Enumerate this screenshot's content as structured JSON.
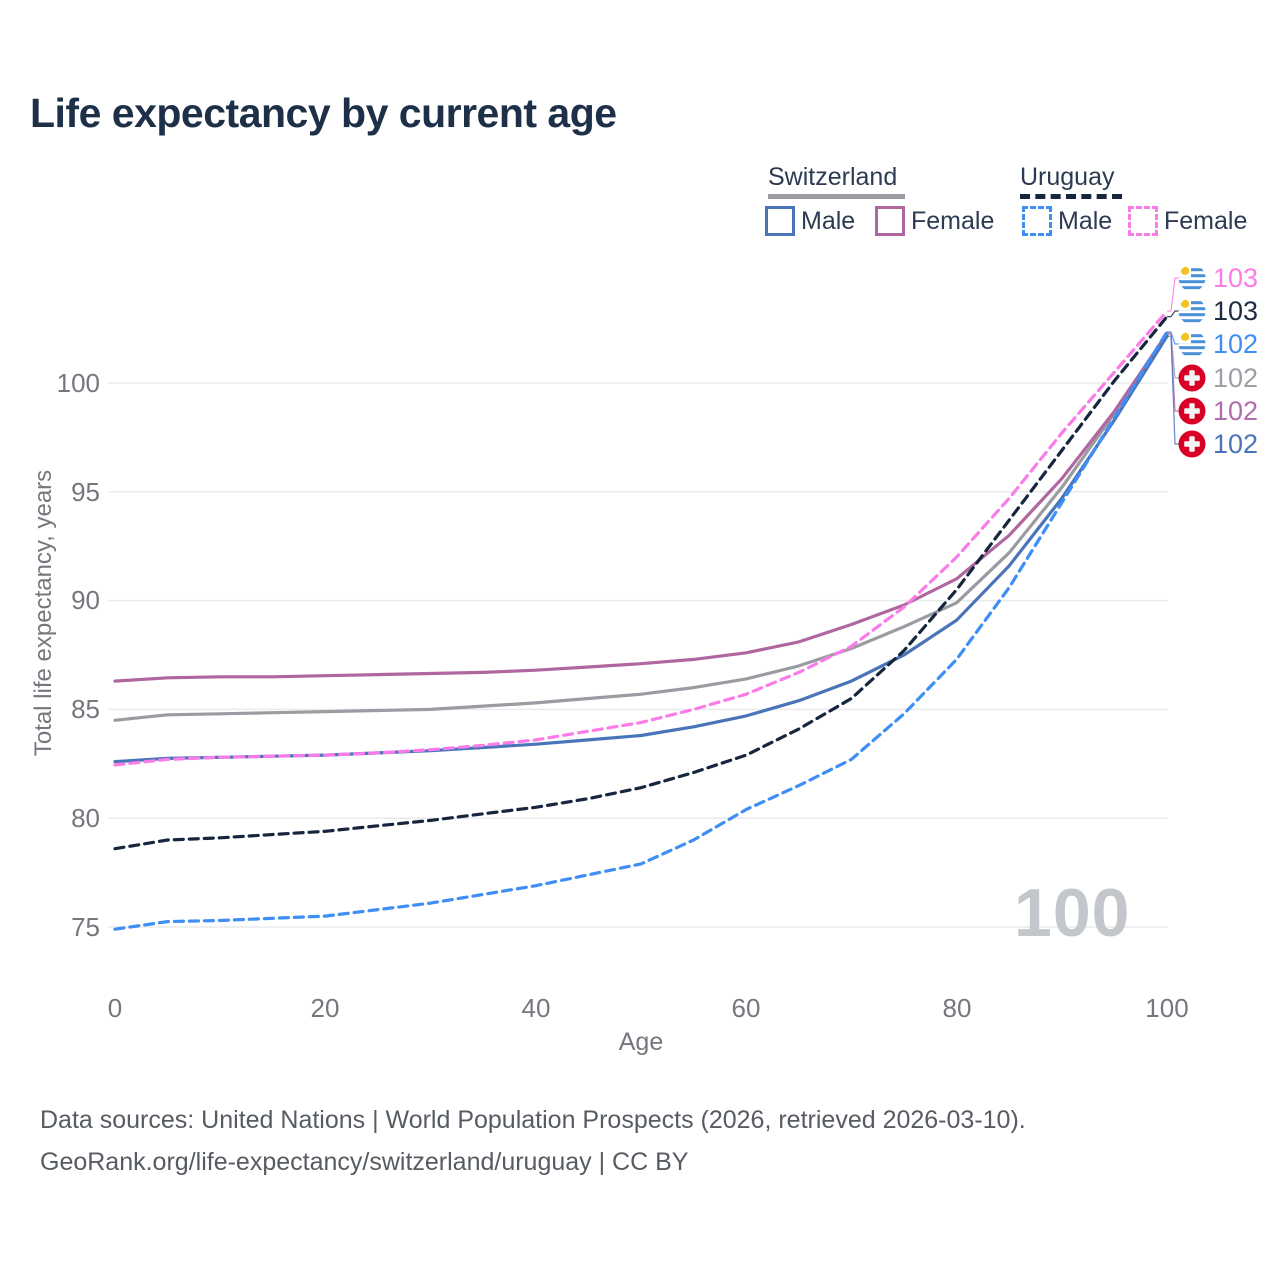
{
  "title": "Life expectancy by current age",
  "legend": {
    "switzerland": {
      "title": "Switzerland",
      "male_label": "Male",
      "female_label": "Female",
      "line_style": "solid",
      "line_color": "#9a9ca1",
      "male_color": "#4a74b9",
      "female_color": "#b0679f"
    },
    "uruguay": {
      "title": "Uruguay",
      "male_label": "Male",
      "female_label": "Female",
      "line_style": "dashed",
      "line_color": "#17263f",
      "male_color": "#3f8ef5",
      "female_color": "#fb7ce8"
    }
  },
  "axes": {
    "y_title": "Total life expectancy, years",
    "x_title": "Age",
    "y_tick_labels": [
      "100",
      "95",
      "90",
      "85",
      "80",
      "75"
    ],
    "x_tick_labels": [
      "0",
      "20",
      "40",
      "60",
      "80",
      "100"
    ]
  },
  "chart_data": {
    "type": "line",
    "title": "Life expectancy by current age",
    "xlabel": "Age",
    "ylabel": "Total life expectancy, years",
    "xlim": [
      0,
      100
    ],
    "ylim": [
      74,
      104
    ],
    "x_ticks": [
      0,
      20,
      40,
      60,
      80,
      100
    ],
    "y_ticks": [
      75,
      80,
      85,
      90,
      95,
      100
    ],
    "grid": "horizontal",
    "legend_position": "top-right",
    "x": [
      0,
      5,
      10,
      15,
      20,
      25,
      30,
      35,
      40,
      45,
      50,
      55,
      60,
      65,
      70,
      75,
      80,
      85,
      90,
      95,
      100
    ],
    "series": [
      {
        "name": "Switzerland Both sexes",
        "country": "switzerland",
        "sex": "all",
        "color": "#9a9ca1",
        "dash": null,
        "width": 3.2,
        "values": [
          84.5,
          84.75,
          84.8,
          84.85,
          84.9,
          84.95,
          85.0,
          85.15,
          85.3,
          85.5,
          85.7,
          86.0,
          86.4,
          87.0,
          87.8,
          88.8,
          89.9,
          92.2,
          95.2,
          98.6,
          102.3
        ]
      },
      {
        "name": "Switzerland Female",
        "country": "switzerland",
        "sex": "female",
        "color": "#b0679f",
        "dash": null,
        "width": 3.2,
        "values": [
          86.3,
          86.45,
          86.5,
          86.5,
          86.55,
          86.6,
          86.65,
          86.7,
          86.8,
          86.95,
          87.1,
          87.3,
          87.6,
          88.1,
          88.9,
          89.8,
          91.0,
          93.0,
          95.6,
          98.7,
          102.25
        ]
      },
      {
        "name": "Switzerland Male",
        "country": "switzerland",
        "sex": "male",
        "color": "#4a74b9",
        "dash": null,
        "width": 3.2,
        "values": [
          82.6,
          82.75,
          82.8,
          82.85,
          82.9,
          83.0,
          83.1,
          83.25,
          83.4,
          83.6,
          83.8,
          84.2,
          84.7,
          85.4,
          86.3,
          87.5,
          89.1,
          91.6,
          94.7,
          98.3,
          102.15
        ]
      },
      {
        "name": "Uruguay Female",
        "country": "uruguay",
        "sex": "female",
        "color": "#fb7ce8",
        "dash": "9 6",
        "width": 3.2,
        "values": [
          82.45,
          82.7,
          82.8,
          82.85,
          82.9,
          83.0,
          83.15,
          83.35,
          83.6,
          84.0,
          84.4,
          85.0,
          85.7,
          86.7,
          87.9,
          89.7,
          92.0,
          94.7,
          97.7,
          100.5,
          103.3
        ]
      },
      {
        "name": "Uruguay Male",
        "country": "uruguay",
        "sex": "male",
        "color": "#3f8ef5",
        "dash": "9 6",
        "width": 3.2,
        "values": [
          74.9,
          75.25,
          75.3,
          75.4,
          75.5,
          75.8,
          76.1,
          76.5,
          76.9,
          77.4,
          77.9,
          79.0,
          80.4,
          81.5,
          82.7,
          84.8,
          87.3,
          90.6,
          94.5,
          98.4,
          102.35
        ]
      },
      {
        "name": "Uruguay Both sexes",
        "country": "uruguay",
        "sex": "all",
        "color": "#17263f",
        "dash": "9 6",
        "width": 3.2,
        "values": [
          78.6,
          79.0,
          79.1,
          79.25,
          79.4,
          79.65,
          79.9,
          80.2,
          80.5,
          80.9,
          81.4,
          82.1,
          82.9,
          84.1,
          85.5,
          87.7,
          90.5,
          93.7,
          96.9,
          100.1,
          103.05
        ]
      }
    ]
  },
  "end_labels": [
    {
      "value": "103",
      "series": "Uruguay Female",
      "flag": "uruguay",
      "color": "#fb7ce8"
    },
    {
      "value": "103",
      "series": "Uruguay Both sexes",
      "flag": "uruguay",
      "color": "#1c2b3d"
    },
    {
      "value": "102",
      "series": "Uruguay Male",
      "flag": "uruguay",
      "color": "#3f8ef5"
    },
    {
      "value": "102",
      "series": "Switzerland Both sexes",
      "flag": "switzerland",
      "color": "#9ba0a6"
    },
    {
      "value": "102",
      "series": "Switzerland Female",
      "flag": "switzerland",
      "color": "#b06cab"
    },
    {
      "value": "102",
      "series": "Switzerland Male",
      "flag": "switzerland",
      "color": "#4a74b9"
    }
  ],
  "watermark": "100",
  "footer": {
    "line1": "Data sources: United Nations | World Population Prospects (2026, retrieved 2026-03-10).",
    "line2": "GeoRank.org/life-expectancy/switzerland/uruguay | CC BY"
  }
}
